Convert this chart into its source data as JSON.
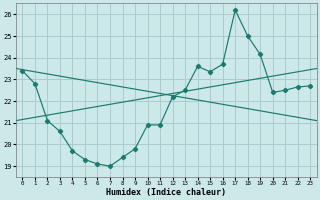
{
  "xlabel": "Humidex (Indice chaleur)",
  "xlim": [
    -0.5,
    23.5
  ],
  "ylim": [
    18.5,
    26.5
  ],
  "yticks": [
    19,
    20,
    21,
    22,
    23,
    24,
    25,
    26
  ],
  "xticks": [
    0,
    1,
    2,
    3,
    4,
    5,
    6,
    7,
    8,
    9,
    10,
    11,
    12,
    13,
    14,
    15,
    16,
    17,
    18,
    19,
    20,
    21,
    22,
    23
  ],
  "bg_color": "#cce8e8",
  "grid_color": "#aacccc",
  "line_color": "#1a7a6e",
  "line1_x": [
    0,
    1,
    2,
    3,
    4,
    5,
    6,
    7,
    8,
    9,
    10,
    11,
    12,
    13,
    14,
    15,
    16,
    17,
    18,
    19,
    20,
    21,
    22,
    23
  ],
  "line1_y": [
    23.4,
    22.8,
    21.1,
    20.6,
    19.7,
    19.3,
    19.1,
    19.0,
    19.4,
    19.8,
    20.9,
    20.9,
    22.2,
    22.5,
    23.6,
    23.35,
    23.7,
    26.2,
    25.0,
    24.15,
    22.4,
    22.5,
    22.65,
    22.7
  ],
  "trend1_x0": -0.5,
  "trend1_y0": 23.5,
  "trend1_x1": 23.5,
  "trend1_y1": 21.1,
  "trend2_x0": -0.5,
  "trend2_y0": 21.1,
  "trend2_x1": 23.5,
  "trend2_y1": 23.5
}
